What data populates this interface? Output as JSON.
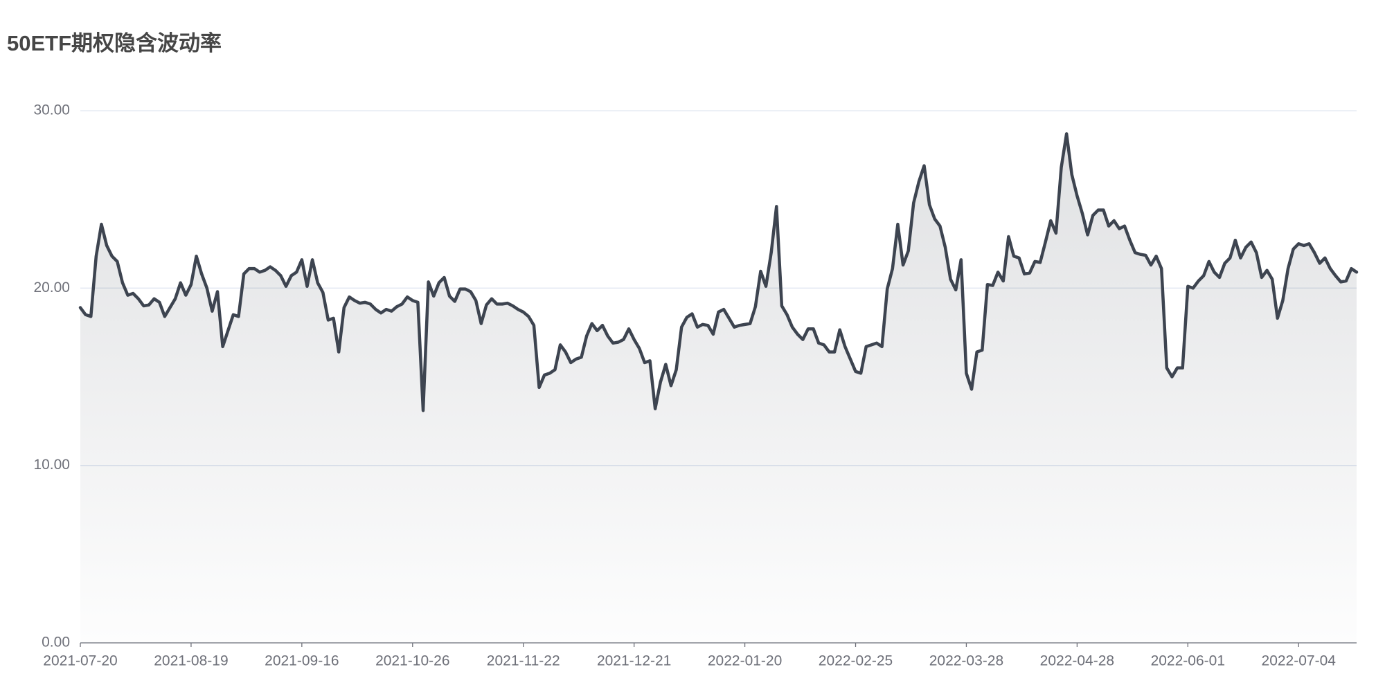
{
  "chart_data": {
    "type": "line",
    "title": "50ETF期权隐含波动率",
    "categories": [
      "2021-07-20",
      null,
      null,
      null,
      null,
      null,
      null,
      null,
      null,
      null,
      null,
      null,
      null,
      null,
      null,
      null,
      null,
      null,
      null,
      null,
      null,
      "2021-08-19",
      null,
      null,
      null,
      null,
      null,
      null,
      null,
      null,
      null,
      null,
      null,
      null,
      null,
      null,
      null,
      null,
      null,
      null,
      null,
      null,
      "2021-09-16",
      null,
      null,
      null,
      null,
      null,
      null,
      null,
      null,
      null,
      null,
      null,
      null,
      null,
      null,
      null,
      null,
      null,
      null,
      null,
      null,
      "2021-10-26",
      null,
      null,
      null,
      null,
      null,
      null,
      null,
      null,
      null,
      null,
      null,
      null,
      null,
      null,
      null,
      null,
      null,
      null,
      null,
      null,
      "2021-11-22",
      null,
      null,
      null,
      null,
      null,
      null,
      null,
      null,
      null,
      null,
      null,
      null,
      null,
      null,
      null,
      null,
      null,
      null,
      null,
      null,
      "2021-12-21",
      null,
      null,
      null,
      null,
      null,
      null,
      null,
      null,
      null,
      null,
      null,
      null,
      null,
      null,
      null,
      null,
      null,
      null,
      null,
      null,
      "2022-01-20",
      null,
      null,
      null,
      null,
      null,
      null,
      null,
      null,
      null,
      null,
      null,
      null,
      null,
      null,
      null,
      null,
      null,
      null,
      null,
      null,
      "2022-02-25",
      null,
      null,
      null,
      null,
      null,
      null,
      null,
      null,
      null,
      null,
      null,
      null,
      null,
      null,
      null,
      null,
      null,
      null,
      null,
      null,
      "2022-03-28",
      null,
      null,
      null,
      null,
      null,
      null,
      null,
      null,
      null,
      null,
      null,
      null,
      null,
      null,
      null,
      null,
      null,
      null,
      null,
      null,
      "2022-04-28",
      null,
      null,
      null,
      null,
      null,
      null,
      null,
      null,
      null,
      null,
      null,
      null,
      null,
      null,
      null,
      null,
      null,
      null,
      null,
      null,
      "2022-06-01",
      null,
      null,
      null,
      null,
      null,
      null,
      null,
      null,
      null,
      null,
      null,
      null,
      null,
      null,
      null,
      null,
      null,
      null,
      null,
      null,
      "2022-07-04",
      null,
      null,
      null,
      null,
      null,
      null,
      null,
      null,
      null,
      null,
      null
    ],
    "series": [
      {
        "color": "#3d4450",
        "values": [
          18.9,
          18.5,
          18.4,
          21.8,
          23.6,
          22.4,
          21.8,
          21.5,
          20.3,
          19.6,
          19.7,
          19.4,
          19.0,
          19.05,
          19.4,
          19.2,
          18.4,
          18.9,
          19.4,
          20.3,
          19.6,
          20.2,
          21.8,
          20.8,
          20.0,
          18.7,
          19.8,
          16.7,
          17.6,
          18.5,
          18.4,
          20.8,
          21.1,
          21.1,
          20.9,
          21.0,
          21.2,
          21.0,
          20.7,
          20.1,
          20.7,
          20.9,
          21.6,
          20.1,
          21.6,
          20.3,
          19.75,
          18.2,
          18.3,
          16.4,
          18.9,
          19.5,
          19.3,
          19.15,
          19.2,
          19.1,
          18.8,
          18.6,
          18.8,
          18.7,
          18.95,
          19.1,
          19.5,
          19.3,
          19.2,
          13.1,
          20.35,
          19.55,
          20.3,
          20.6,
          19.55,
          19.25,
          19.95,
          19.95,
          19.8,
          19.3,
          18.0,
          19.05,
          19.4,
          19.1,
          19.1,
          19.15,
          19.0,
          18.8,
          18.65,
          18.4,
          17.9,
          14.4,
          15.1,
          15.2,
          15.4,
          16.8,
          16.4,
          15.8,
          16.0,
          16.1,
          17.3,
          18.0,
          17.6,
          17.9,
          17.3,
          16.9,
          16.95,
          17.1,
          17.7,
          17.1,
          16.6,
          15.8,
          15.9,
          13.2,
          14.7,
          15.7,
          14.5,
          15.4,
          17.8,
          18.35,
          18.55,
          17.8,
          17.95,
          17.9,
          17.4,
          18.65,
          18.8,
          18.3,
          17.8,
          17.9,
          17.95,
          18.0,
          18.95,
          20.95,
          20.1,
          22.0,
          24.6,
          19.0,
          18.5,
          17.8,
          17.4,
          17.1,
          17.7,
          17.7,
          16.9,
          16.8,
          16.4,
          16.4,
          17.65,
          16.7,
          16.0,
          15.3,
          15.2,
          16.7,
          16.8,
          16.9,
          16.7,
          19.95,
          21.1,
          23.6,
          21.3,
          22.1,
          24.8,
          26.0,
          26.9,
          24.7,
          23.9,
          23.5,
          22.3,
          20.5,
          19.9,
          21.6,
          15.2,
          14.3,
          16.4,
          16.5,
          20.2,
          20.15,
          20.9,
          20.4,
          22.9,
          21.8,
          21.7,
          20.8,
          20.85,
          21.5,
          21.45,
          22.6,
          23.8,
          23.1,
          26.8,
          28.7,
          26.4,
          25.2,
          24.2,
          23.0,
          24.1,
          24.4,
          24.4,
          23.5,
          23.8,
          23.35,
          23.5,
          22.7,
          22.0,
          21.9,
          21.85,
          21.3,
          21.8,
          21.1,
          15.5,
          15.0,
          15.5,
          15.5,
          20.1,
          20.0,
          20.4,
          20.7,
          21.5,
          20.9,
          20.6,
          21.4,
          21.7,
          22.7,
          21.7,
          22.3,
          22.6,
          22.0,
          20.6,
          21.0,
          20.5,
          18.3,
          19.3,
          21.1,
          22.2,
          22.5,
          22.4,
          22.5,
          22.0,
          21.4,
          21.7,
          21.1,
          20.7,
          20.35,
          20.4,
          21.1,
          20.9
        ]
      }
    ],
    "ylim": [
      0,
      30
    ],
    "yticks": [
      {
        "value": 0,
        "label": "0.00"
      },
      {
        "value": 10,
        "label": "10.00"
      },
      {
        "value": 20,
        "label": "20.00"
      },
      {
        "value": 30,
        "label": "30.00"
      }
    ],
    "grid": true,
    "area": true
  }
}
